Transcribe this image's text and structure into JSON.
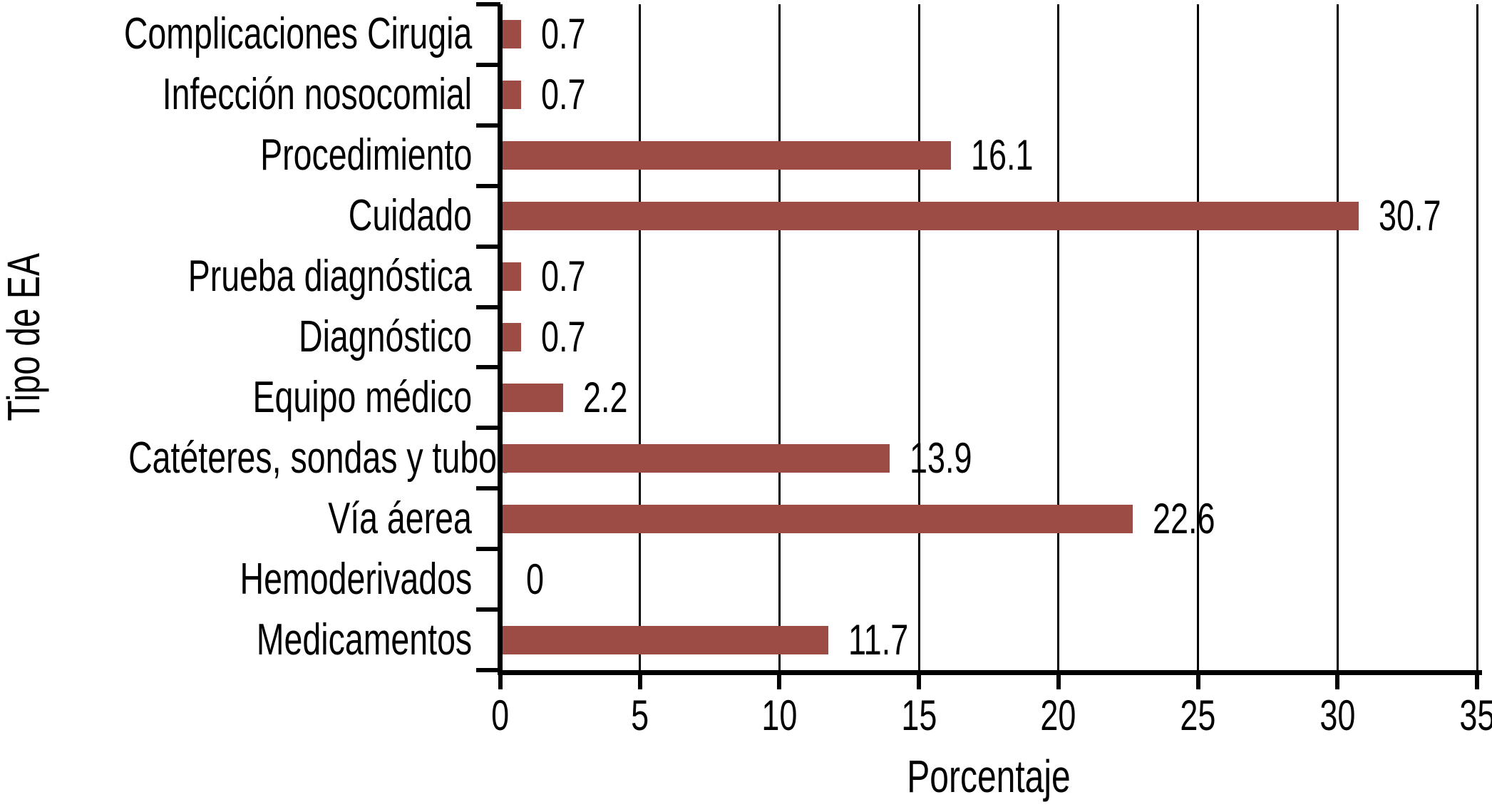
{
  "chart_data": {
    "type": "bar",
    "orientation": "horizontal",
    "title": "",
    "xlabel": "Porcentaje",
    "ylabel": "Tipo de EA",
    "categories": [
      "Complicaciones Cirugia",
      "Infección nosocomial",
      "Procedimiento",
      "Cuidado",
      "Prueba diagnóstica",
      "Diagnóstico",
      "Equipo médico",
      "Catéteres, sondas y tubos",
      "Vía áerea",
      "Hemoderivados",
      "Medicamentos"
    ],
    "values": [
      0.7,
      0.7,
      16.1,
      30.7,
      0.7,
      0.7,
      2.2,
      13.9,
      22.6,
      0,
      11.7
    ],
    "value_labels": [
      "0.7",
      "0.7",
      "16.1",
      "30.7",
      "0.7",
      "0.7",
      "2.2",
      "13.9",
      "22.6",
      "0",
      "11.7"
    ],
    "x_ticks": [
      0,
      5,
      10,
      15,
      20,
      25,
      30,
      35
    ],
    "x_tick_labels": [
      "0",
      "5",
      "10",
      "15",
      "20",
      "25",
      "30",
      "35"
    ],
    "xlim": [
      0,
      35
    ],
    "grid": "vertical",
    "legend": "none",
    "bar_color": "#9d4b45",
    "axis_color": "#000000",
    "text_color": "#000000",
    "background": "#ffffff"
  }
}
